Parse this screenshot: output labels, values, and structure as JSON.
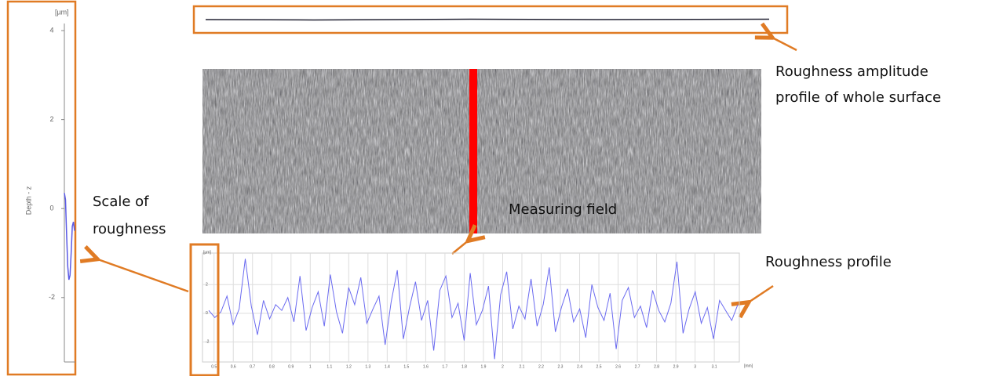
{
  "annotations": {
    "amplitude": [
      "Roughness amplitude",
      "profile of whole surface"
    ],
    "profile": "Roughness profile",
    "scale": [
      "Scale of",
      "roughness"
    ],
    "measuring_field": "Measuring field"
  },
  "zoom": {
    "unit": "[µm]",
    "ylabel": "Depth - z",
    "yticks": [
      4,
      2,
      0,
      -2
    ],
    "ylim": [
      -3.8,
      4.3
    ],
    "values": [
      0.35,
      0.2,
      -0.6,
      -1.3,
      -1.6,
      -1.5,
      -1.0,
      -0.4,
      -0.3,
      -0.5
    ]
  },
  "profile": {
    "unit_y": "[µm]",
    "unit_x": "[mm]",
    "yticks": [
      2,
      0,
      -2
    ],
    "ylim": [
      -3.4,
      4.2
    ],
    "xticks": [
      0.5,
      0.6,
      0.7,
      0.8,
      0.9,
      1,
      1.1,
      1.2,
      1.3,
      1.4,
      1.5,
      1.6,
      1.7,
      1.8,
      1.9,
      2,
      2.1,
      2.2,
      2.3,
      2.4,
      2.5,
      2.6,
      2.7,
      2.8,
      2.9,
      3,
      3.1
    ],
    "xlim": [
      0.44,
      3.23
    ],
    "values": [
      0.2,
      -0.3,
      0.1,
      1.2,
      -0.8,
      0.3,
      3.8,
      0.5,
      -1.5,
      0.9,
      -0.4,
      0.6,
      0.2,
      1.1,
      -0.6,
      2.6,
      -1.2,
      0.4,
      1.5,
      -0.9,
      2.7,
      0.1,
      -1.4,
      1.8,
      0.6,
      2.5,
      -0.7,
      0.3,
      1.2,
      -2.2,
      0.8,
      3.0,
      -1.8,
      0.4,
      2.2,
      -0.5,
      0.9,
      -2.6,
      1.6,
      2.6,
      -0.3,
      0.7,
      -1.9,
      2.8,
      -0.8,
      0.2,
      1.9,
      -3.2,
      1.3,
      2.9,
      -1.1,
      0.5,
      -0.4,
      2.4,
      -0.9,
      0.6,
      3.2,
      -1.3,
      0.4,
      1.7,
      -0.6,
      0.3,
      -1.7,
      2.0,
      0.4,
      -0.5,
      1.4,
      -2.5,
      0.9,
      1.8,
      -0.3,
      0.5,
      -1.0,
      1.6,
      0.2,
      -0.6,
      0.7,
      3.6,
      -1.4,
      0.3,
      1.5,
      -0.7,
      0.4,
      -1.8,
      0.9,
      0.2,
      -0.5,
      0.6
    ]
  }
}
